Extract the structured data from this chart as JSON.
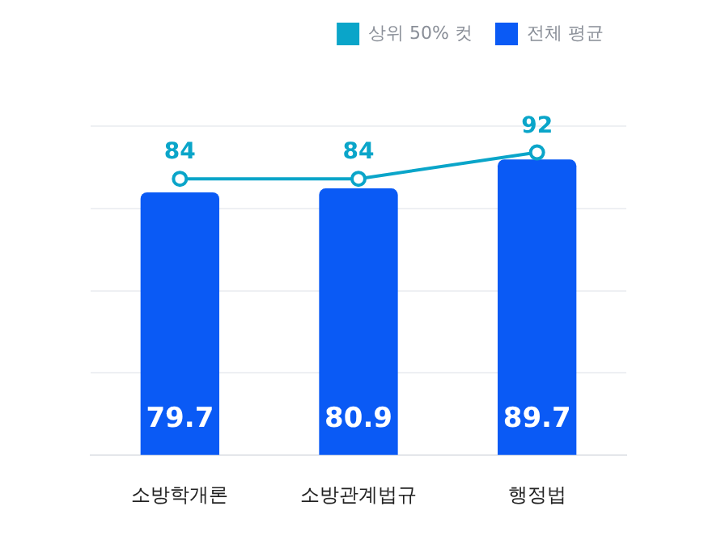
{
  "chart_data": {
    "type": "bar",
    "categories": [
      "소방학개론",
      "소방관계법규",
      "행정법"
    ],
    "series": [
      {
        "name": "상위 50% 컷",
        "type": "line",
        "color": "#0aa5c9",
        "values": [
          84,
          84,
          92
        ],
        "marker": "circle"
      },
      {
        "name": "전체 평균",
        "color": "#0a5af5",
        "values": [
          79.7,
          80.9,
          89.7
        ]
      }
    ],
    "tick_labels": "x",
    "grid": "y",
    "legend": "top right",
    "data_labels": true
  }
}
